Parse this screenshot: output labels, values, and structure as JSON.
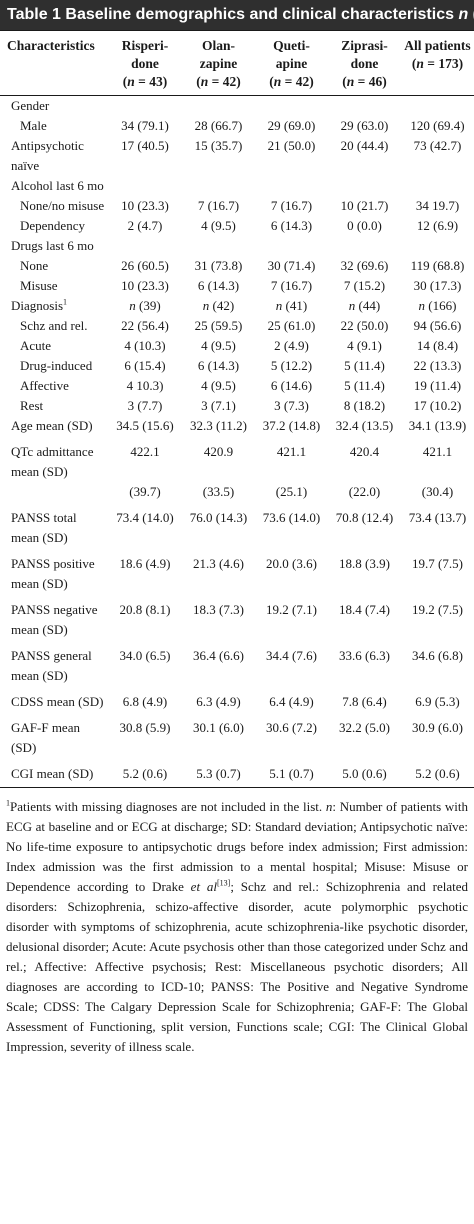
{
  "title": {
    "text": "Table 1 Baseline demographics and clinical characteristics",
    "unit_symbol": "n",
    "unit_suffix": " (%)"
  },
  "columns": [
    {
      "line1": "Characteristics",
      "line2": ""
    },
    {
      "line1": "Risperi-",
      "line2": "done",
      "n_label": "n",
      "n_value": " = 43"
    },
    {
      "line1": "Olan-",
      "line2": "zapine",
      "n_label": "n",
      "n_value": " = 42"
    },
    {
      "line1": "Queti-",
      "line2": "apine",
      "n_label": "n",
      "n_value": " = 42"
    },
    {
      "line1": "Ziprasi-",
      "line2": "done",
      "n_label": "n",
      "n_value": " = 46"
    },
    {
      "line1": "All patients",
      "line2": "",
      "n_label": "n",
      "n_value": " = 173"
    }
  ],
  "rows": [
    {
      "label": "Gender",
      "values": [
        "",
        "",
        "",
        "",
        ""
      ]
    },
    {
      "label": "Male",
      "values": [
        "34 (79.1)",
        "28 (66.7)",
        "29 (69.0)",
        "29 (63.0)",
        "120 (69.4)"
      ],
      "sub": true
    },
    {
      "label": "Antipsychotic naïve",
      "values": [
        "17 (40.5)",
        "15 (35.7)",
        "21 (50.0)",
        "20 (44.4)",
        "73 (42.7)"
      ]
    },
    {
      "label": "Alcohol last 6 mo",
      "values": [
        "",
        "",
        "",
        "",
        ""
      ]
    },
    {
      "label": "None/no misuse",
      "values": [
        "10 (23.3)",
        "7 (16.7)",
        "7 (16.7)",
        "10 (21.7)",
        "34 19.7)"
      ],
      "sub": true
    },
    {
      "label": "Dependency",
      "values": [
        "2 (4.7)",
        "4 (9.5)",
        "6 (14.3)",
        "0 (0.0)",
        "12 (6.9)"
      ],
      "sub": true
    },
    {
      "label": "Drugs last 6 mo",
      "values": [
        "",
        "",
        "",
        "",
        ""
      ]
    },
    {
      "label": "None",
      "values": [
        "26 (60.5)",
        "31 (73.8)",
        "30 (71.4)",
        "32 (69.6)",
        "119 (68.8)"
      ],
      "sub": true
    },
    {
      "label": "Misuse",
      "values": [
        "10 (23.3)",
        "6 (14.3)",
        "7 (16.7)",
        "7 (15.2)",
        "30 (17.3)"
      ],
      "sub": true
    },
    {
      "label": "Diagnosis",
      "label_sup": "1",
      "values": [
        "n (39)",
        "n (42)",
        "n (41)",
        "n (44)",
        "n (166)"
      ],
      "italic_n": true
    },
    {
      "label": "Schz and rel.",
      "values": [
        "22 (56.4)",
        "25 (59.5)",
        "25 (61.0)",
        "22 (50.0)",
        "94 (56.6)"
      ],
      "sub": true
    },
    {
      "label": "Acute",
      "values": [
        "4 (10.3)",
        "4 (9.5)",
        "2 (4.9)",
        "4 (9.1)",
        "14 (8.4)"
      ],
      "sub": true
    },
    {
      "label": "Drug-induced",
      "values": [
        "6 (15.4)",
        "6 (14.3)",
        "5 (12.2)",
        "5 (11.4)",
        "22 (13.3)"
      ],
      "sub": true
    },
    {
      "label": "Affective",
      "values": [
        "4 10.3)",
        "4 (9.5)",
        "6 (14.6)",
        "5 (11.4)",
        "19 (11.4)"
      ],
      "sub": true
    },
    {
      "label": "Rest",
      "values": [
        "3 (7.7)",
        "3 (7.1)",
        "3 (7.3)",
        "8 (18.2)",
        "17 (10.2)"
      ],
      "sub": true
    },
    {
      "label": "Age mean (SD)",
      "values": [
        "34.5 (15.6)",
        "32.3 (11.2)",
        "37.2 (14.8)",
        "32.4 (13.5)",
        "34.1 (13.9)"
      ]
    },
    {
      "label": "QTc admittance mean (SD)",
      "values": [
        "422.1\n\n(39.7)",
        "420.9\n\n(33.5)",
        "421.1\n\n(25.1)",
        "420.4\n\n(22.0)",
        "421.1\n\n(30.4)"
      ],
      "gap": true
    },
    {
      "label": "PANSS total mean (SD)",
      "values": [
        "73.4 (14.0)",
        "76.0 (14.3)",
        "73.6 (14.0)",
        "70.8 (12.4)",
        "73.4 (13.7)"
      ],
      "gap": true
    },
    {
      "label": "PANSS positive mean (SD)",
      "values": [
        "18.6 (4.9)",
        "21.3 (4.6)",
        "20.0 (3.6)",
        "18.8 (3.9)",
        "19.7 (7.5)"
      ],
      "gap": true
    },
    {
      "label": "PANSS negative mean (SD)",
      "values": [
        "20.8 (8.1)",
        "18.3 (7.3)",
        "19.2 (7.1)",
        "18.4 (7.4)",
        "19.2 (7.5)"
      ],
      "gap": true
    },
    {
      "label": "PANSS general mean (SD)",
      "values": [
        "34.0 (6.5)",
        "36.4 (6.6)",
        "34.4 (7.6)",
        "33.6 (6.3)",
        "34.6 (6.8)"
      ],
      "gap": true
    },
    {
      "label": "CDSS mean (SD)",
      "values": [
        "6.8 (4.9)",
        "6.3 (4.9)",
        "6.4 (4.9)",
        "7.8 (6.4)",
        "6.9 (5.3)"
      ],
      "gap": true
    },
    {
      "label": "GAF-F mean (SD)",
      "values": [
        "30.8 (5.9)",
        "30.1 (6.0)",
        "30.6 (7.2)",
        "32.2 (5.0)",
        "30.9 (6.0)"
      ],
      "gap": true
    },
    {
      "label": "CGI mean (SD)",
      "values": [
        "5.2 (0.6)",
        "5.3 (0.7)",
        "5.1 (0.7)",
        "5.0 (0.6)",
        "5.2 (0.6)"
      ],
      "gap": true
    }
  ],
  "footnote": {
    "sup": "1",
    "part1": "Patients with missing diagnoses are not included in the list. ",
    "n_italic": "n",
    "part2": ": Number of patients with ECG at baseline and or ECG at discharge; SD: Standard deviation; Antipsychotic naïve: No life-time exposure to antipsychotic drugs before index admission; First admission: Index admission was the first admission to a mental hospital; Misuse: Misuse or Dependence according to Drake ",
    "etal": "et al",
    "ref": "[13]",
    "part3": "; Schz and rel.: Schizophrenia and related disorders: Schizophrenia, schizo-affective disorder, acute polymorphic psychotic disorder with symptoms of schizophrenia, acute schizophrenia-like psychotic disorder, delusional disorder; Acute: Acute psychosis other than those categorized under Schz and rel.; Affective: Affective psychosis; Rest: Miscellaneous psychotic disorders; All diagnoses are according to ICD-10; PANSS: The Positive and Negative Syndrome Scale; CDSS: The Calgary Depression Scale for Schizophrenia; GAF-F: The Global Assessment of Functioning, split version, Functions scale; CGI: The Clinical Global Impression, severity of illness scale."
  }
}
